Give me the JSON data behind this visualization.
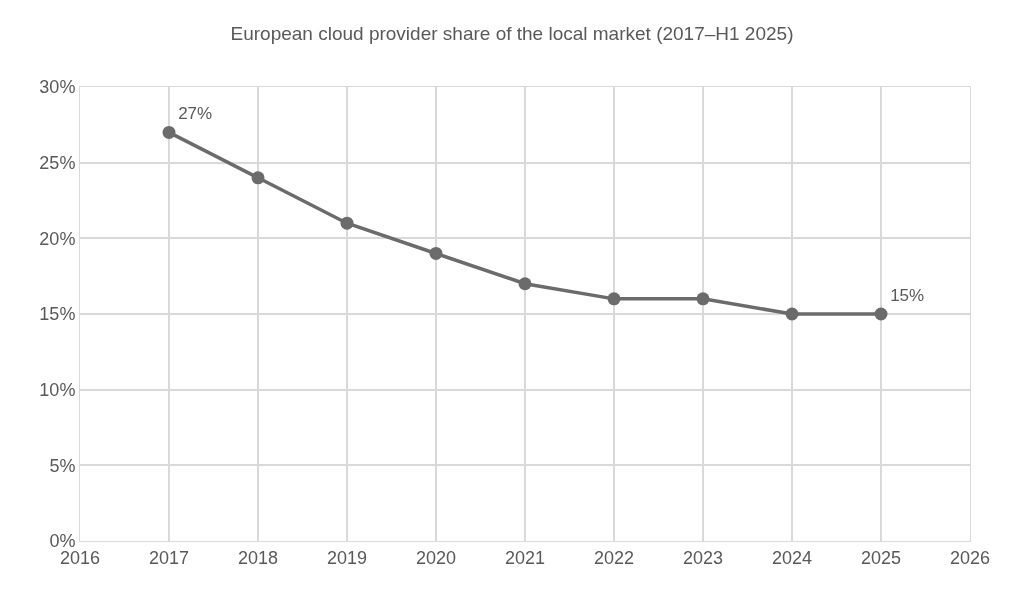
{
  "chart_data": {
    "type": "line",
    "title": "European cloud provider share of the local market (2017–H1 2025)",
    "x": [
      2017,
      2018,
      2019,
      2020,
      2021,
      2022,
      2023,
      2024,
      2025
    ],
    "series": [
      {
        "color": "#6b6b6b",
        "values": [
          27,
          24,
          21,
          19,
          17,
          16,
          16,
          15,
          15
        ],
        "value_labels": [
          "27%",
          null,
          null,
          null,
          null,
          null,
          null,
          null,
          "15%"
        ]
      }
    ],
    "xlim": [
      2016,
      2026
    ],
    "xticks": [
      2016,
      2017,
      2018,
      2019,
      2020,
      2021,
      2022,
      2023,
      2024,
      2025,
      2026
    ],
    "ylim": [
      0,
      30
    ],
    "yticks": [
      {
        "value": 0,
        "label": "0%"
      },
      {
        "value": 5,
        "label": "5%"
      },
      {
        "value": 10,
        "label": "10%"
      },
      {
        "value": 15,
        "label": "15%"
      },
      {
        "value": 20,
        "label": "20%"
      },
      {
        "value": 25,
        "label": "25%"
      },
      {
        "value": 30,
        "label": "30%"
      }
    ],
    "grid": true,
    "marker": "circle",
    "line_style": "solid"
  }
}
